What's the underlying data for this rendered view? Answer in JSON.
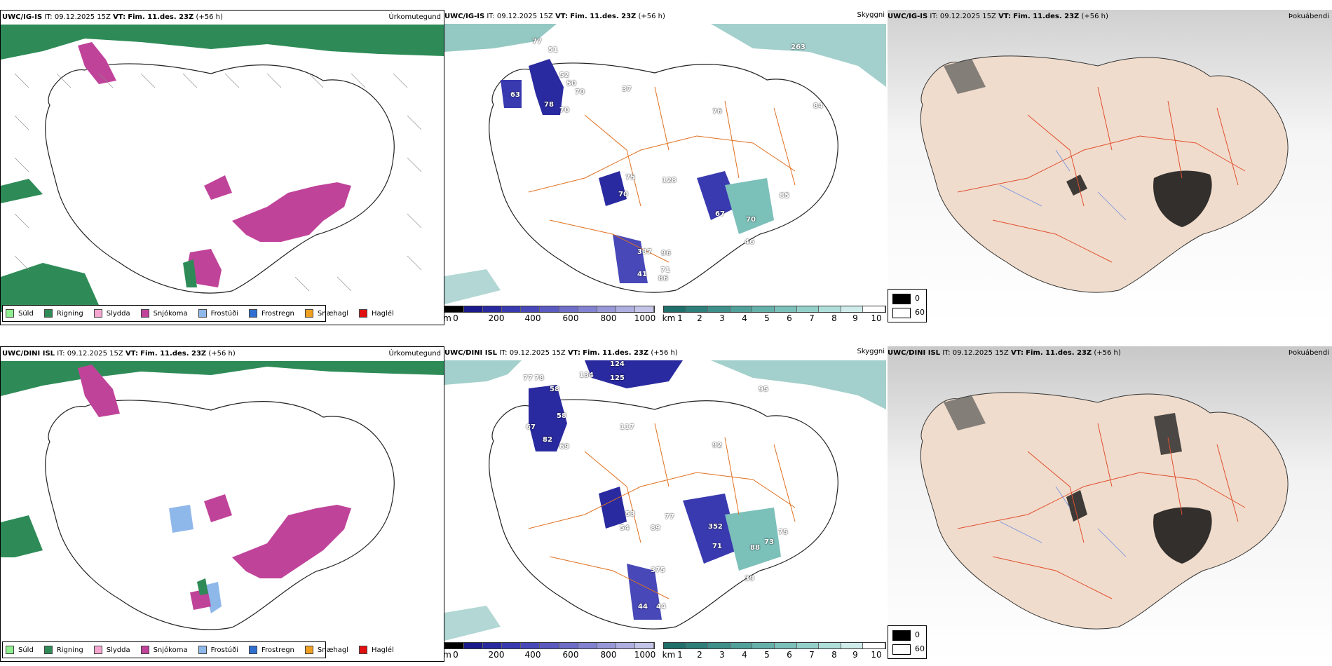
{
  "rows": [
    {
      "model": "UWC/IG-IS",
      "issue": "IT: 09.12.2025 15Z",
      "valid_label": "VT:",
      "valid": "Fim. 11.des. 23Z",
      "lead": "(+56 h)",
      "panels": {
        "precip": "Úrkomutegund",
        "cloud": "Skyggni",
        "fog": "Þokuábendi"
      },
      "visibility_labels": [
        "77",
        "51",
        "52",
        "50",
        "70",
        "63",
        "78",
        "70",
        "37",
        "76",
        "75",
        "70",
        "128",
        "67",
        "70",
        "85",
        "337",
        "96",
        "71",
        "41",
        "86",
        "263",
        "84",
        "46"
      ]
    },
    {
      "model": "UWC/DINI ISL",
      "issue": "IT: 09.12.2025 15Z",
      "valid_label": "VT:",
      "valid": "Fim. 11.des. 23Z",
      "lead": "(+56 h)",
      "panels": {
        "precip": "Úrkomutegund",
        "cloud": "Skyggni",
        "fog": "Þokuábendi"
      },
      "visibility_labels": [
        "124",
        "134",
        "125",
        "77",
        "78",
        "58",
        "58",
        "67",
        "82",
        "69",
        "117",
        "92",
        "95",
        "53",
        "77",
        "54",
        "89",
        "352",
        "71",
        "88",
        "73",
        "75",
        "375",
        "39",
        "44",
        "44"
      ]
    }
  ],
  "precip_legend": [
    {
      "label": "Súld",
      "color": "#90ee90"
    },
    {
      "label": "Rigning",
      "color": "#2e8b57"
    },
    {
      "label": "Slydda",
      "color": "#f4a6d0"
    },
    {
      "label": "Snjókoma",
      "color": "#c0439a"
    },
    {
      "label": "Frostúði",
      "color": "#8fb8ea"
    },
    {
      "label": "Frostregn",
      "color": "#2f6fd0"
    },
    {
      "label": "Snæhagl",
      "color": "#f0a020"
    },
    {
      "label": "Haglél",
      "color": "#e01010"
    }
  ],
  "cloud_base_scale": {
    "unit": "m",
    "ticks": [
      "0",
      "200",
      "400",
      "600",
      "800",
      "1000"
    ],
    "colors": [
      "#000000",
      "#1a1a8a",
      "#2a2aa0",
      "#3a3ab0",
      "#4848b8",
      "#5a5ac0",
      "#6e6ec8",
      "#8282d0",
      "#9898d8",
      "#aeaee0",
      "#c4c4e8"
    ]
  },
  "visibility_scale": {
    "unit": "km",
    "ticks": [
      "1",
      "2",
      "3",
      "4",
      "5",
      "6",
      "7",
      "8",
      "9",
      "10"
    ],
    "colors": [
      "#1f6f6a",
      "#2e7f7a",
      "#3f8f8a",
      "#51a09a",
      "#66b0aa",
      "#7cc0ba",
      "#94d0ca",
      "#b0dfda",
      "#cfecea",
      "#ffffff"
    ]
  },
  "fog_legend": {
    "high": "0",
    "low": "60"
  }
}
